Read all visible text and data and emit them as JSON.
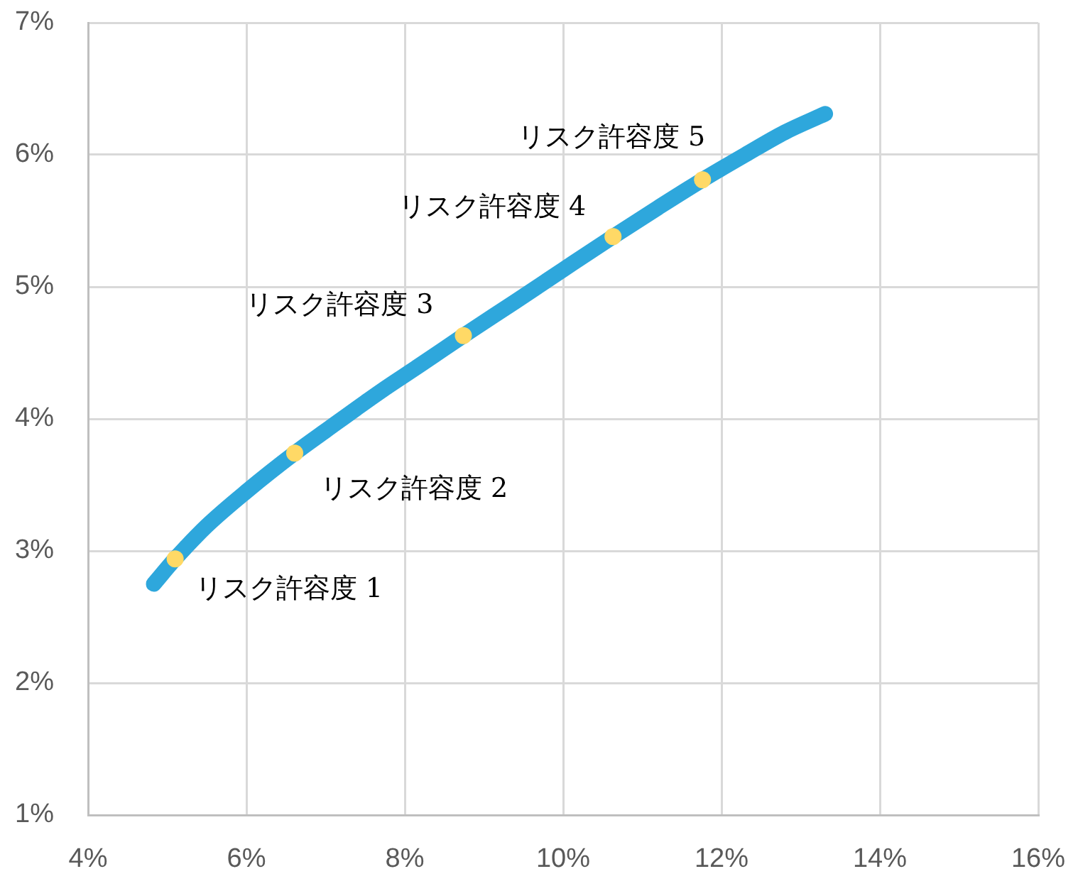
{
  "chart_data": {
    "type": "line",
    "xlim": [
      4,
      16
    ],
    "xticks": [
      {
        "value": 4,
        "label": "4%"
      },
      {
        "value": 6,
        "label": "6%"
      },
      {
        "value": 8,
        "label": "8%"
      },
      {
        "value": 10,
        "label": "10%"
      },
      {
        "value": 12,
        "label": "12%"
      },
      {
        "value": 14,
        "label": "14%"
      },
      {
        "value": 16,
        "label": "16%"
      }
    ],
    "ylim": [
      1,
      7
    ],
    "yticks": [
      {
        "value": 1,
        "label": "1%"
      },
      {
        "value": 2,
        "label": "2%"
      },
      {
        "value": 3,
        "label": "3%"
      },
      {
        "value": 4,
        "label": "4%"
      },
      {
        "value": 5,
        "label": "5%"
      },
      {
        "value": 6,
        "label": "6%"
      },
      {
        "value": 7,
        "label": "7%"
      }
    ],
    "grid": true,
    "series": [
      {
        "color": "#2ea7dc",
        "marker": "none",
        "x": [
          4.83,
          5.1,
          5.5,
          6.0,
          6.61,
          7.0,
          7.7,
          8.2,
          8.74,
          9.4,
          10.0,
          10.63,
          11.2,
          11.76,
          12.3,
          12.8,
          13.31
        ],
        "values": [
          2.75,
          2.94,
          3.19,
          3.45,
          3.74,
          3.91,
          4.21,
          4.41,
          4.63,
          4.89,
          5.13,
          5.38,
          5.6,
          5.81,
          6.0,
          6.17,
          6.31
        ]
      },
      {
        "type": "scatter",
        "color": "#ffd966",
        "marker": "circle",
        "x": [
          5.1,
          6.61,
          8.74,
          10.63,
          11.76
        ],
        "values": [
          2.94,
          3.74,
          4.63,
          5.38,
          5.81
        ]
      }
    ],
    "annotations": [
      {
        "text": "リスク許容度 1",
        "x": 5.1,
        "y": 2.94
      },
      {
        "text": "リスク許容度 2",
        "x": 6.61,
        "y": 3.74
      },
      {
        "text": "リスク許容度 3",
        "x": 8.74,
        "y": 4.63
      },
      {
        "text": "リスク許容度 4",
        "x": 10.63,
        "y": 5.38
      },
      {
        "text": "リスク許容度 5",
        "x": 11.76,
        "y": 5.81
      }
    ]
  }
}
